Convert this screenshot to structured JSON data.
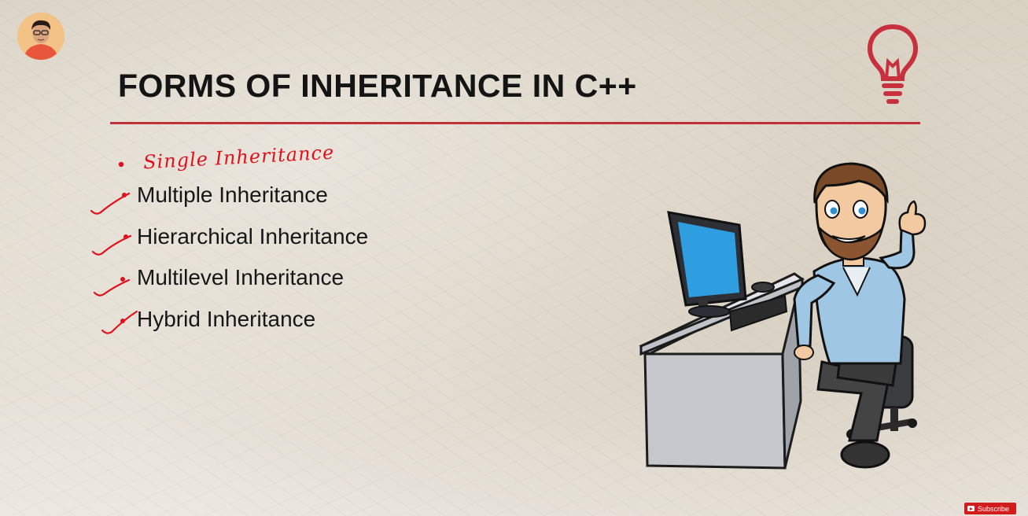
{
  "slide": {
    "title": "FORMS OF INHERITANCE IN C++",
    "accent_color": "#c0303a",
    "handwritten_note": "Single Inheritance",
    "handwritten_color": "#e0101c",
    "items": [
      {
        "label": "Multiple Inheritance"
      },
      {
        "label": "Hierarchical Inheritance"
      },
      {
        "label": "Multilevel Inheritance"
      },
      {
        "label": "Hybrid Inheritance"
      }
    ],
    "icons": [
      "lightbulb-icon",
      "checkmark-icon",
      "subscribe-play-icon"
    ]
  },
  "subscribe": {
    "label": "Subscribe",
    "color": "#d21b1b"
  }
}
